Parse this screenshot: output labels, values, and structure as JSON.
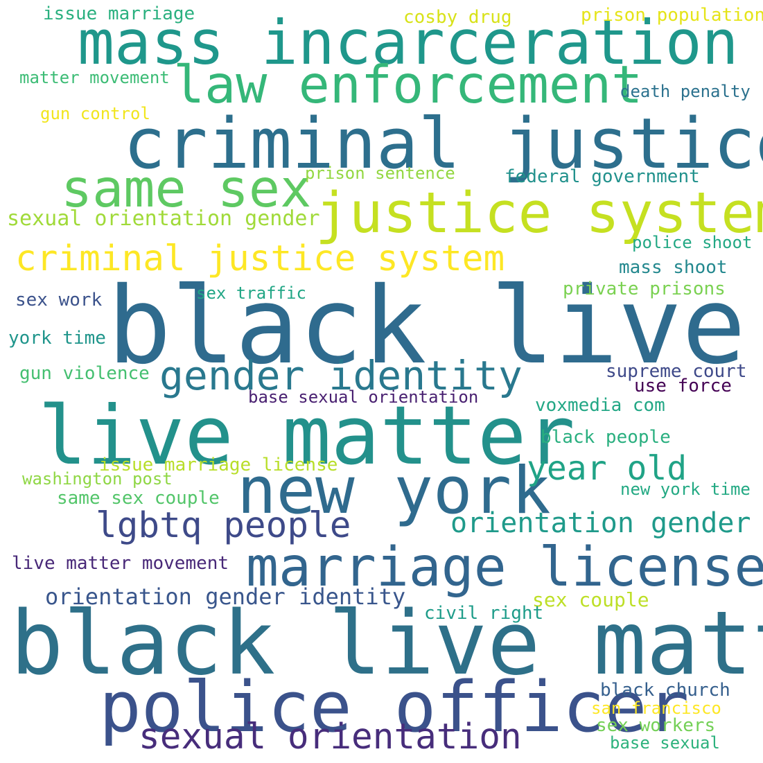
{
  "words": [
    {
      "text": "black live",
      "color": "#2f6b8e"
    },
    {
      "text": "black live matter",
      "color": "#2e7089"
    },
    {
      "text": "live matter",
      "color": "#23918b"
    },
    {
      "text": "criminal justice",
      "color": "#2d6f8d"
    },
    {
      "text": "mass incarceration",
      "color": "#1f978b"
    },
    {
      "text": "justice system",
      "color": "#c5e021"
    },
    {
      "text": "new york",
      "color": "#2f6b8e"
    },
    {
      "text": "police officer",
      "color": "#3b528b"
    },
    {
      "text": "law enforcement",
      "color": "#35b779"
    },
    {
      "text": "same sex",
      "color": "#5ec962"
    },
    {
      "text": "marriage license",
      "color": "#32658e"
    },
    {
      "text": "criminal justice system",
      "color": "#fde725"
    },
    {
      "text": "gender identity",
      "color": "#29788e"
    },
    {
      "text": "lgbtq people",
      "color": "#3e4a89"
    },
    {
      "text": "sexual orientation",
      "color": "#472d7b"
    },
    {
      "text": "year old",
      "color": "#20a386"
    },
    {
      "text": "orientation gender",
      "color": "#1f9a8a"
    },
    {
      "text": "orientation gender identity",
      "color": "#39568c"
    },
    {
      "text": "sexual orientation gender",
      "color": "#a0da39"
    },
    {
      "text": "issue marriage",
      "color": "#2ab07f"
    },
    {
      "text": "cosby drug",
      "color": "#d8e219"
    },
    {
      "text": "prison population",
      "color": "#e5e419"
    },
    {
      "text": "matter movement",
      "color": "#3cbc75"
    },
    {
      "text": "gun control",
      "color": "#f1e51d"
    },
    {
      "text": "death penalty",
      "color": "#2c728e"
    },
    {
      "text": "prison sentence",
      "color": "#93d741"
    },
    {
      "text": "federal government",
      "color": "#21918c"
    },
    {
      "text": "police shoot",
      "color": "#22a884"
    },
    {
      "text": "mass shoot",
      "color": "#23888e"
    },
    {
      "text": "private prisons",
      "color": "#7ad151"
    },
    {
      "text": "sex traffic",
      "color": "#21a685"
    },
    {
      "text": "sex work",
      "color": "#3b528b"
    },
    {
      "text": "york time",
      "color": "#1f958b"
    },
    {
      "text": "gun violence",
      "color": "#44bf70"
    },
    {
      "text": "supreme court",
      "color": "#3e4989"
    },
    {
      "text": "use force",
      "color": "#440154"
    },
    {
      "text": "base sexual orientation",
      "color": "#481f70"
    },
    {
      "text": "voxmedia com",
      "color": "#22a785"
    },
    {
      "text": "black people",
      "color": "#29af7f"
    },
    {
      "text": "issue marriage license",
      "color": "#b8de29"
    },
    {
      "text": "washington post",
      "color": "#8fd744"
    },
    {
      "text": "same sex couple",
      "color": "#52c569"
    },
    {
      "text": "new york time",
      "color": "#23a983"
    },
    {
      "text": "live matter movement",
      "color": "#482878"
    },
    {
      "text": "sex couple",
      "color": "#bddf26"
    },
    {
      "text": "civil right",
      "color": "#1e9c89"
    },
    {
      "text": "black church",
      "color": "#355f8d"
    },
    {
      "text": "san francisco",
      "color": "#fde725"
    },
    {
      "text": "sex workers",
      "color": "#73d056"
    },
    {
      "text": "base sexual",
      "color": "#2db27d"
    }
  ]
}
